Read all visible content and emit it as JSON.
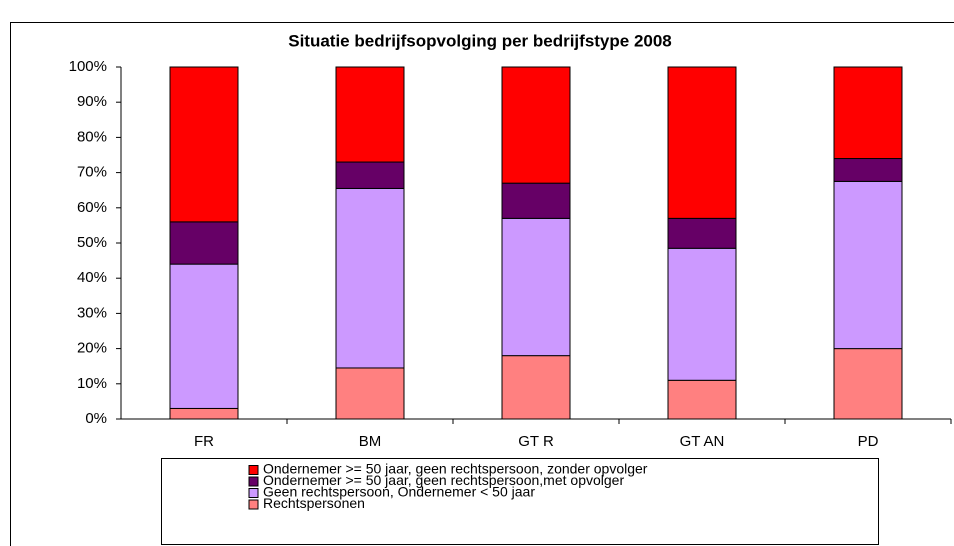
{
  "chart_data": {
    "type": "stacked_bar",
    "title": "Situatie bedrijfsopvolging per bedrijfstype 2008",
    "categories": [
      "FR",
      "BM",
      "GT R",
      "GT AN",
      "PD"
    ],
    "series": [
      {
        "name": "Rechtspersonen",
        "color": "#ff8080",
        "values": [
          3,
          14.5,
          18,
          11,
          20
        ]
      },
      {
        "name": "Geen rechtspersoon, Ondernemer < 50 jaar",
        "color": "#cc99ff",
        "values": [
          41,
          51,
          39,
          37.5,
          47.5
        ]
      },
      {
        "name": "Ondernemer >= 50 jaar, geen rechtspersoon,met opvolger",
        "color": "#660066",
        "values": [
          12,
          7.5,
          10,
          8.5,
          6.5
        ]
      },
      {
        "name": "Ondernemer >= 50 jaar, geen rechtspersoon, zonder opvolger",
        "color": "#ff0000",
        "values": [
          44,
          27,
          33,
          43,
          26
        ]
      }
    ],
    "ylim": [
      0,
      100
    ],
    "yticks": [
      {
        "value": 0,
        "label": "0%"
      },
      {
        "value": 10,
        "label": "10%"
      },
      {
        "value": 20,
        "label": "20%"
      },
      {
        "value": 30,
        "label": "30%"
      },
      {
        "value": 40,
        "label": "40%"
      },
      {
        "value": 50,
        "label": "50%"
      },
      {
        "value": 60,
        "label": "60%"
      },
      {
        "value": 70,
        "label": "70%"
      },
      {
        "value": 80,
        "label": "80%"
      },
      {
        "value": 90,
        "label": "90%"
      },
      {
        "value": 100,
        "label": "100%"
      }
    ],
    "legend": "bottom"
  }
}
